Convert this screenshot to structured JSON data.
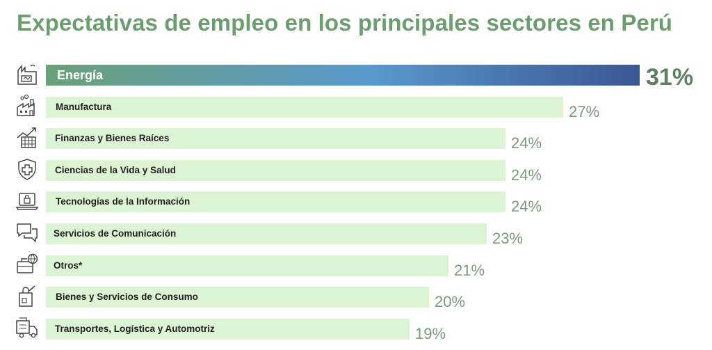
{
  "title": "Expectativas de empleo en los principales sectores en Perú",
  "colors": {
    "title": "#6b9e6e",
    "bar_fill": "#dcf3d4",
    "highlight_gradient": [
      "#6aa07a",
      "#5898cd",
      "#3b5794"
    ],
    "value_text": "#7a9a7c",
    "highlight_value_text": "#5f7f63",
    "icon_stroke": "#444444"
  },
  "chart_data": {
    "type": "bar",
    "orientation": "horizontal",
    "title": "Expectativas de empleo en los principales sectores en Perú",
    "categories": [
      "Energía",
      "Manufactura",
      "Finanzas y Bienes Raíces",
      "Ciencias de la Vida y Salud",
      "Tecnologías de la Información",
      "Servicios de Comunicación",
      "Otros*",
      "Bienes y Servicios de Consumo",
      "Transportes, Logística y Automotriz"
    ],
    "values": [
      31,
      27,
      24,
      24,
      24,
      23,
      21,
      20,
      19
    ],
    "value_labels": [
      "31%",
      "27%",
      "24%",
      "24%",
      "24%",
      "23%",
      "21%",
      "20%",
      "19%"
    ],
    "icons": [
      "energy-plant-icon",
      "factory-icon",
      "finance-chart-building-icon",
      "health-shield-cross-icon",
      "laptop-lock-icon",
      "chat-bubbles-icon",
      "briefcase-globe-icon",
      "shopping-bag-icon",
      "delivery-truck-icon"
    ],
    "highlight_index": 0,
    "xlim": [
      0,
      31
    ],
    "grid": false,
    "legend": "none"
  }
}
